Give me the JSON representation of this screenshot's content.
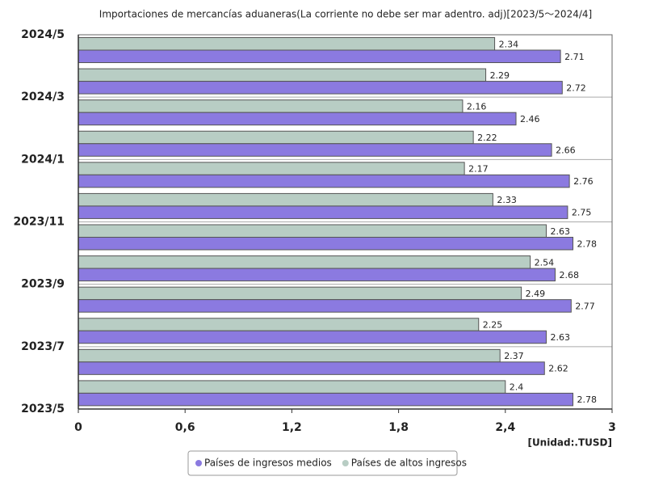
{
  "chart_data": {
    "type": "barh",
    "title": "Importaciones de mercancías aduaneras(La corriente no debe ser mar adentro. adj)[2023/5～2024/4]",
    "unit_label": "[Unidad:.TUSD]",
    "yticks": [
      "2024/5",
      "2024/3",
      "2024/1",
      "2023/11",
      "2023/9",
      "2023/7",
      "2023/5"
    ],
    "series": [
      {
        "name": "Países de altos ingresos",
        "color": "#b8cdc4",
        "values": [
          2.34,
          2.29,
          2.16,
          2.22,
          2.17,
          2.33,
          2.63,
          2.54,
          2.49,
          2.25,
          2.37,
          2.4
        ]
      },
      {
        "name": "Países de ingresos medios",
        "color": "#8b7ae0",
        "values": [
          2.71,
          2.72,
          2.46,
          2.66,
          2.76,
          2.75,
          2.78,
          2.68,
          2.77,
          2.63,
          2.62,
          2.78
        ]
      }
    ],
    "legend_order": [
      1,
      0
    ],
    "xlim": [
      0,
      3
    ],
    "xticks": [
      0,
      {
        "value": 0.6,
        "label": "0,6"
      },
      {
        "value": 1.2,
        "label": "1,2"
      },
      {
        "value": 1.8,
        "label": "1,8"
      },
      {
        "value": 2.4,
        "label": "2,4"
      },
      3
    ],
    "grid": true
  }
}
